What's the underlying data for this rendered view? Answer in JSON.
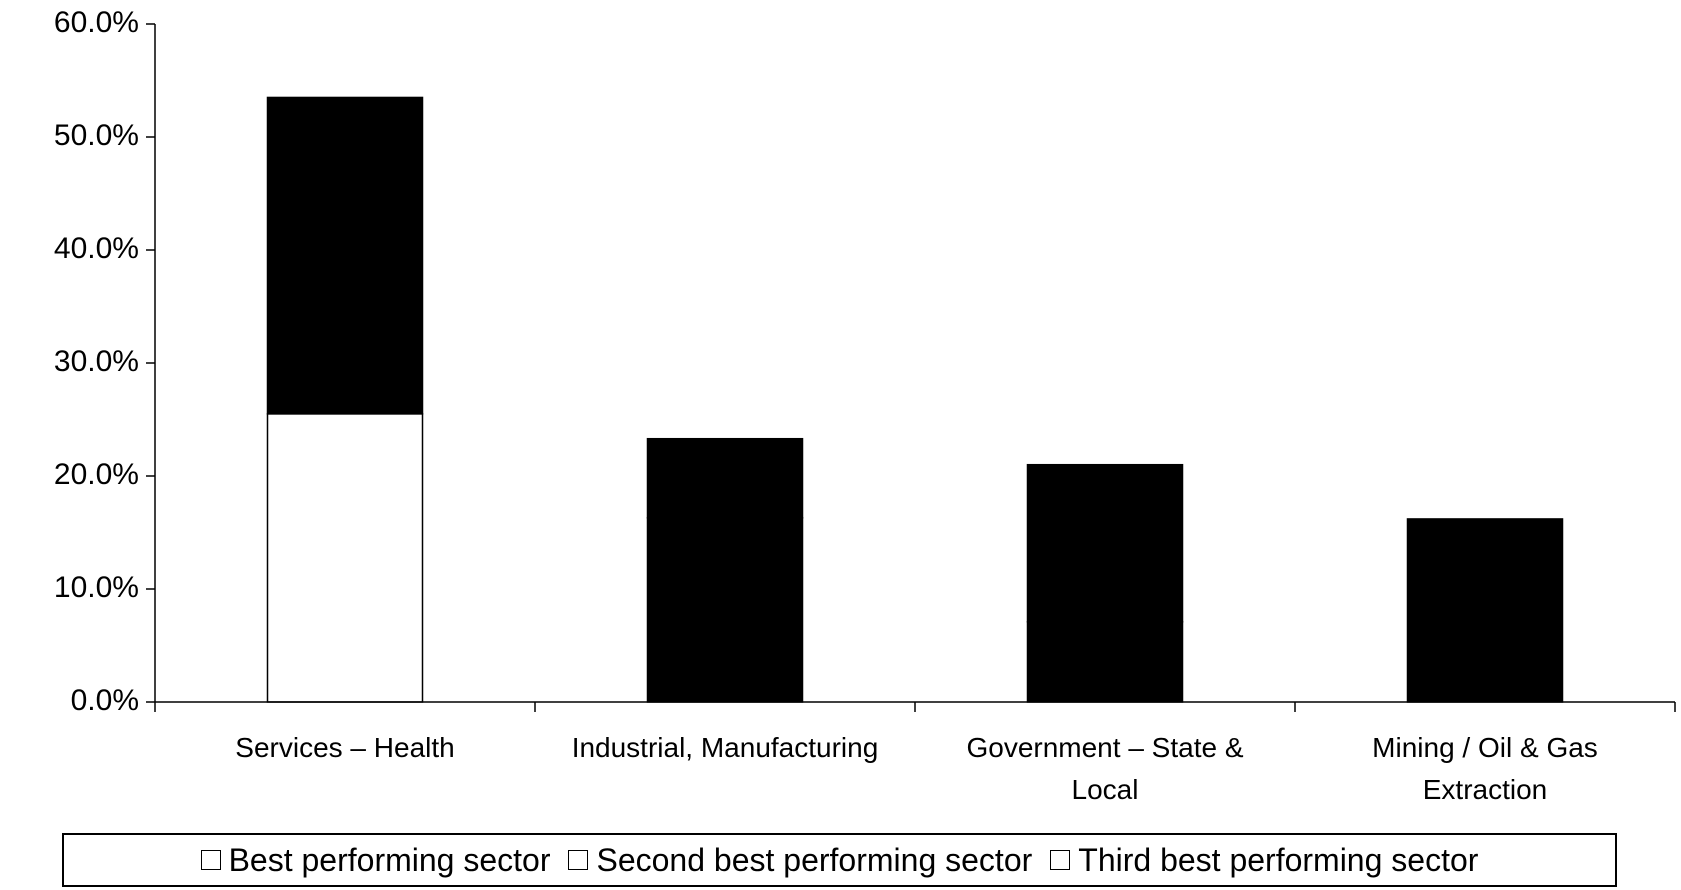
{
  "chart_data": {
    "type": "stacked_bar",
    "categories": [
      "Services – Health",
      "Industrial, Manufacturing",
      "Government – State & Local",
      "Mining / Oil & Gas Extraction"
    ],
    "series": [
      {
        "name": "Best performing sector",
        "color": "#ffffff",
        "values": [
          25.5,
          0,
          0,
          0
        ]
      },
      {
        "name": "Second best performing sector",
        "color": "#000000",
        "values": [
          28.0,
          16.3,
          7.1,
          0
        ]
      },
      {
        "name": "Third best performing sector",
        "color": "#000000",
        "values": [
          0,
          7.0,
          13.9,
          16.2
        ]
      }
    ],
    "ylim": [
      0,
      60
    ],
    "yticks": [
      {
        "value": 0,
        "label": "0.0%"
      },
      {
        "value": 10,
        "label": "10.0%"
      },
      {
        "value": 20,
        "label": "20.0%"
      },
      {
        "value": 30,
        "label": "30.0%"
      },
      {
        "value": 40,
        "label": "40.0%"
      },
      {
        "value": 50,
        "label": "50.0%"
      },
      {
        "value": 60,
        "label": "60.0%"
      }
    ],
    "grid": false,
    "legend": "bottom"
  }
}
